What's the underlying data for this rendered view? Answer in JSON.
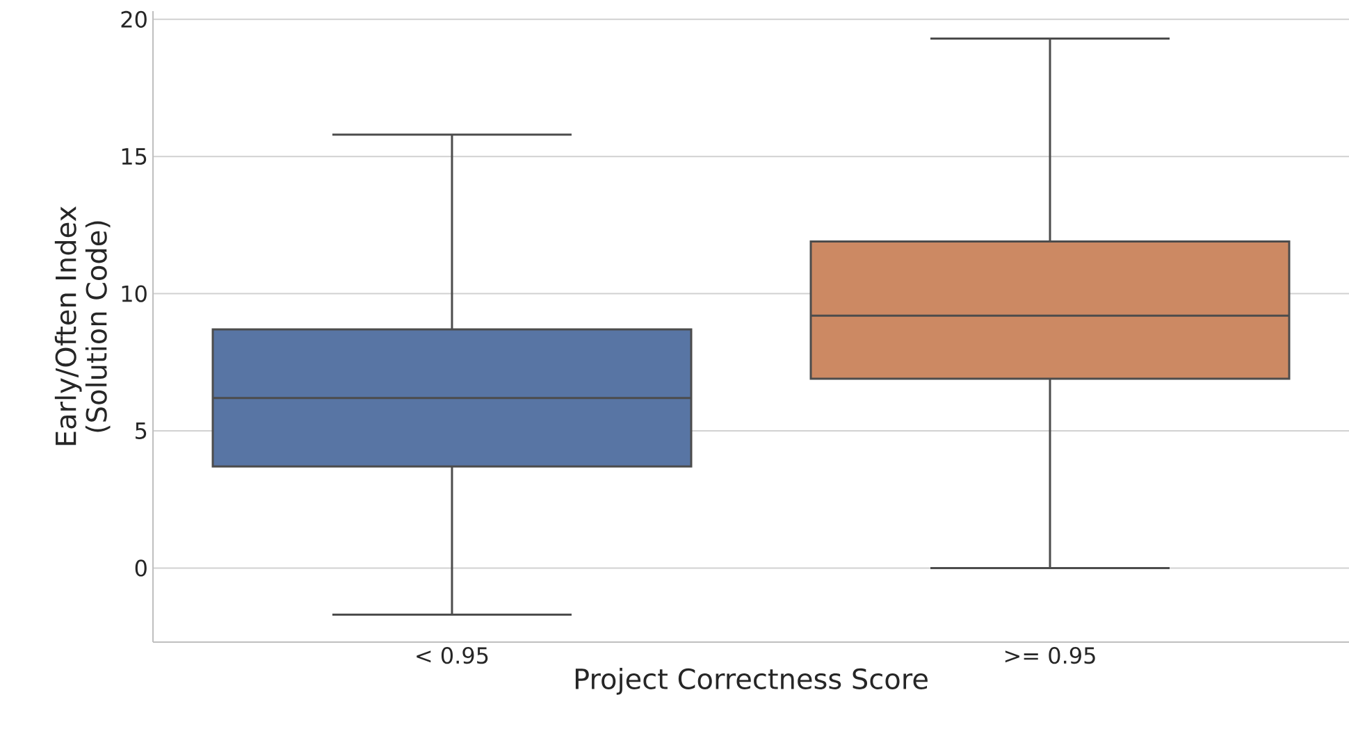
{
  "chart_data": {
    "type": "box",
    "xlabel": "Project Correctness Score",
    "ylabel": "Early/Often Index (Solution Code)",
    "categories": [
      "< 0.95",
      ">= 0.95"
    ],
    "colors": [
      "#5875a4",
      "#cc8963"
    ],
    "boxes": [
      {
        "low": -1.7,
        "q1": 3.7,
        "median": 6.2,
        "q3": 8.7,
        "high": 15.8
      },
      {
        "low": 0,
        "q1": 6.9,
        "median": 9.2,
        "q3": 11.9,
        "high": 19.3
      }
    ],
    "ylim": [
      -2.7,
      20.3
    ],
    "yticks": [
      0,
      5,
      10,
      15,
      20
    ],
    "grid": "y"
  }
}
